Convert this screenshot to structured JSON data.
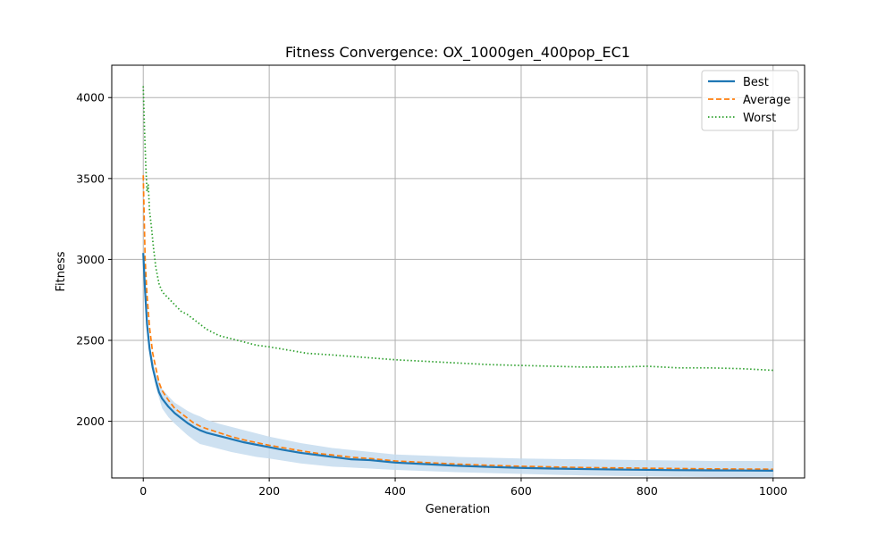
{
  "chart_data": {
    "type": "line",
    "title": "Fitness Convergence: OX_1000gen_400pop_EC1",
    "xlabel": "Generation",
    "ylabel": "Fitness",
    "xlim": [
      -50,
      1050
    ],
    "ylim": [
      1650,
      4200
    ],
    "x_ticks": [
      0,
      200,
      400,
      600,
      800,
      1000
    ],
    "y_ticks": [
      2000,
      2500,
      3000,
      3500,
      4000
    ],
    "grid": true,
    "legend_position": "top-right",
    "band_color": "#c6dcee",
    "series": [
      {
        "name": "Best",
        "style": "solid",
        "color": "#1f77b4",
        "x": [
          0,
          3,
          6,
          10,
          15,
          20,
          25,
          30,
          40,
          50,
          60,
          70,
          80,
          90,
          100,
          120,
          140,
          160,
          180,
          200,
          220,
          250,
          280,
          300,
          330,
          360,
          400,
          450,
          500,
          550,
          600,
          650,
          700,
          750,
          800,
          850,
          900,
          950,
          1000
        ],
        "values": [
          3040,
          2800,
          2600,
          2450,
          2330,
          2250,
          2180,
          2140,
          2090,
          2050,
          2020,
          1990,
          1965,
          1945,
          1930,
          1910,
          1890,
          1870,
          1855,
          1840,
          1825,
          1805,
          1790,
          1780,
          1765,
          1760,
          1745,
          1735,
          1725,
          1718,
          1712,
          1708,
          1705,
          1702,
          1700,
          1698,
          1697,
          1696,
          1695
        ]
      },
      {
        "name": "Average",
        "style": "dashed",
        "color": "#ff7f0e",
        "x": [
          0,
          3,
          6,
          10,
          15,
          20,
          25,
          30,
          40,
          50,
          60,
          70,
          80,
          90,
          100,
          120,
          140,
          160,
          180,
          200,
          220,
          250,
          280,
          300,
          330,
          360,
          400,
          450,
          500,
          550,
          600,
          650,
          700,
          750,
          800,
          850,
          900,
          950,
          1000
        ],
        "values": [
          3520,
          3000,
          2780,
          2580,
          2420,
          2330,
          2240,
          2190,
          2130,
          2080,
          2050,
          2020,
          1990,
          1970,
          1955,
          1930,
          1905,
          1885,
          1868,
          1852,
          1838,
          1818,
          1800,
          1792,
          1778,
          1770,
          1755,
          1745,
          1735,
          1728,
          1722,
          1718,
          1714,
          1712,
          1710,
          1708,
          1706,
          1705,
          1704
        ]
      },
      {
        "name": "Worst",
        "style": "dotted",
        "color": "#2ca02c",
        "x": [
          0,
          2,
          4,
          6,
          8,
          10,
          13,
          16,
          20,
          25,
          30,
          40,
          50,
          60,
          70,
          80,
          90,
          100,
          120,
          140,
          160,
          180,
          200,
          230,
          260,
          300,
          350,
          400,
          450,
          500,
          550,
          600,
          650,
          700,
          750,
          800,
          850,
          900,
          950,
          1000
        ],
        "values": [
          4070,
          3800,
          3580,
          3420,
          3460,
          3300,
          3200,
          3080,
          2950,
          2850,
          2800,
          2760,
          2720,
          2680,
          2660,
          2630,
          2600,
          2570,
          2530,
          2510,
          2490,
          2470,
          2460,
          2440,
          2420,
          2410,
          2395,
          2380,
          2370,
          2360,
          2350,
          2345,
          2340,
          2335,
          2335,
          2340,
          2330,
          2330,
          2325,
          2315
        ]
      }
    ],
    "std_band": {
      "x": [
        0,
        10,
        20,
        30,
        40,
        50,
        60,
        70,
        80,
        90,
        100,
        120,
        140,
        160,
        180,
        200,
        250,
        300,
        400,
        500,
        600,
        700,
        800,
        900,
        1000
      ],
      "upper": [
        3040,
        2470,
        2290,
        2200,
        2155,
        2115,
        2090,
        2065,
        2045,
        2030,
        2010,
        1985,
        1965,
        1945,
        1925,
        1905,
        1865,
        1835,
        1795,
        1780,
        1770,
        1765,
        1760,
        1755,
        1755
      ],
      "lower": [
        3040,
        2430,
        2210,
        2080,
        2025,
        1985,
        1950,
        1915,
        1885,
        1860,
        1850,
        1830,
        1810,
        1795,
        1780,
        1770,
        1740,
        1720,
        1700,
        1685,
        1675,
        1665,
        1660,
        1655,
        1650
      ]
    }
  }
}
